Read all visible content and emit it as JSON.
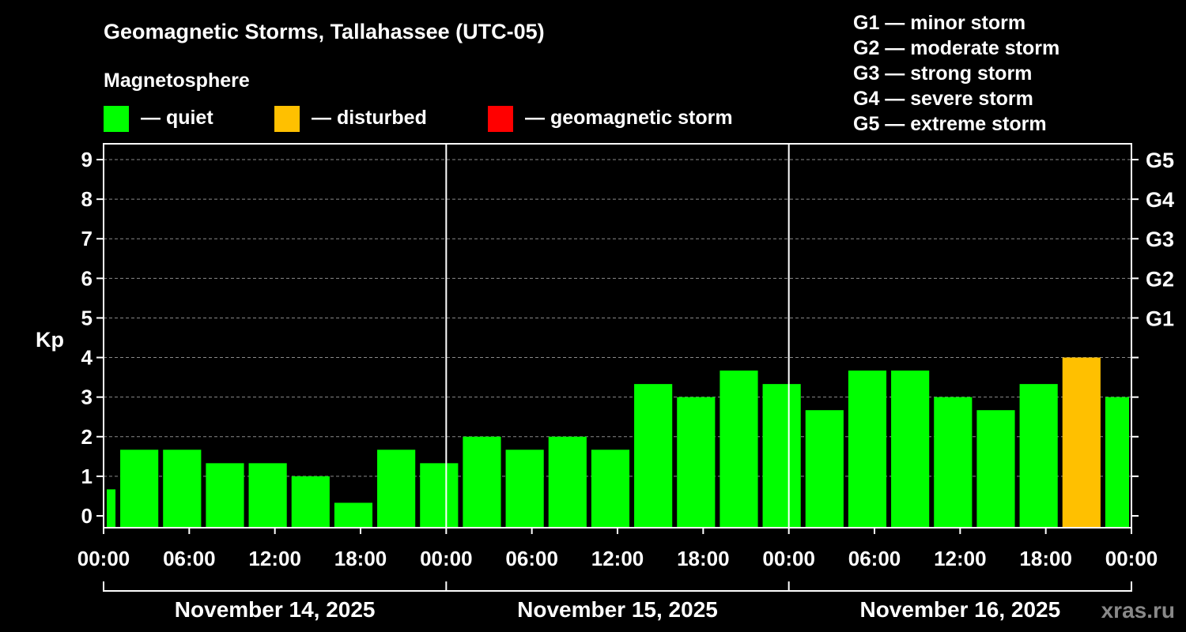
{
  "chart_data": {
    "type": "bar",
    "title": "Geomagnetic Storms, Tallahassee (UTC-05)",
    "legend_title": "Magnetosphere",
    "legend": [
      {
        "label": "— quiet",
        "color": "#00ff00"
      },
      {
        "label": "— disturbed",
        "color": "#ffc000"
      },
      {
        "label": "— geomagnetic storm",
        "color": "#ff0000"
      }
    ],
    "storm_scale": [
      "G1 — minor storm",
      "G2 — moderate storm",
      "G3 — strong storm",
      "G4 — severe storm",
      "G5 — extreme storm"
    ],
    "ylabel": "Kp",
    "ylim": [
      -0.3,
      9.4
    ],
    "y_ticks": [
      "0",
      "1",
      "2",
      "3",
      "4",
      "5",
      "6",
      "7",
      "8",
      "9"
    ],
    "right_ticks": [
      {
        "kp": 5,
        "label": "G1"
      },
      {
        "kp": 6,
        "label": "G2"
      },
      {
        "kp": 7,
        "label": "G3"
      },
      {
        "kp": 8,
        "label": "G4"
      },
      {
        "kp": 9,
        "label": "G5"
      }
    ],
    "x_range_hours": [
      0,
      72
    ],
    "x_ticks": [
      "00:00",
      "06:00",
      "12:00",
      "18:00",
      "00:00",
      "06:00",
      "12:00",
      "18:00",
      "00:00",
      "06:00",
      "12:00",
      "18:00",
      "00:00"
    ],
    "dates": [
      "November 14, 2025",
      "November 15, 2025",
      "November 16, 2025"
    ],
    "watermark": "xras.ru",
    "bars": [
      {
        "start": 0,
        "end": 1,
        "kp": 0.67,
        "level": "quiet"
      },
      {
        "start": 1,
        "end": 4,
        "kp": 1.67,
        "level": "quiet"
      },
      {
        "start": 4,
        "end": 7,
        "kp": 1.67,
        "level": "quiet"
      },
      {
        "start": 7,
        "end": 10,
        "kp": 1.33,
        "level": "quiet"
      },
      {
        "start": 10,
        "end": 13,
        "kp": 1.33,
        "level": "quiet"
      },
      {
        "start": 13,
        "end": 16,
        "kp": 1.0,
        "level": "quiet"
      },
      {
        "start": 16,
        "end": 19,
        "kp": 0.33,
        "level": "quiet"
      },
      {
        "start": 19,
        "end": 22,
        "kp": 1.67,
        "level": "quiet"
      },
      {
        "start": 22,
        "end": 25,
        "kp": 1.33,
        "level": "quiet"
      },
      {
        "start": 25,
        "end": 28,
        "kp": 2.0,
        "level": "quiet"
      },
      {
        "start": 28,
        "end": 31,
        "kp": 1.67,
        "level": "quiet"
      },
      {
        "start": 31,
        "end": 34,
        "kp": 2.0,
        "level": "quiet"
      },
      {
        "start": 34,
        "end": 37,
        "kp": 1.67,
        "level": "quiet"
      },
      {
        "start": 37,
        "end": 40,
        "kp": 3.33,
        "level": "quiet"
      },
      {
        "start": 40,
        "end": 43,
        "kp": 3.0,
        "level": "quiet"
      },
      {
        "start": 43,
        "end": 46,
        "kp": 3.67,
        "level": "quiet"
      },
      {
        "start": 46,
        "end": 49,
        "kp": 3.33,
        "level": "quiet"
      },
      {
        "start": 49,
        "end": 52,
        "kp": 2.67,
        "level": "quiet"
      },
      {
        "start": 52,
        "end": 55,
        "kp": 3.67,
        "level": "quiet"
      },
      {
        "start": 55,
        "end": 58,
        "kp": 3.67,
        "level": "quiet"
      },
      {
        "start": 58,
        "end": 61,
        "kp": 3.0,
        "level": "quiet"
      },
      {
        "start": 61,
        "end": 64,
        "kp": 2.67,
        "level": "quiet"
      },
      {
        "start": 64,
        "end": 67,
        "kp": 3.33,
        "level": "quiet"
      },
      {
        "start": 67,
        "end": 70,
        "kp": 4.0,
        "level": "disturbed"
      },
      {
        "start": 70,
        "end": 72,
        "kp": 3.0,
        "level": "quiet"
      }
    ]
  }
}
